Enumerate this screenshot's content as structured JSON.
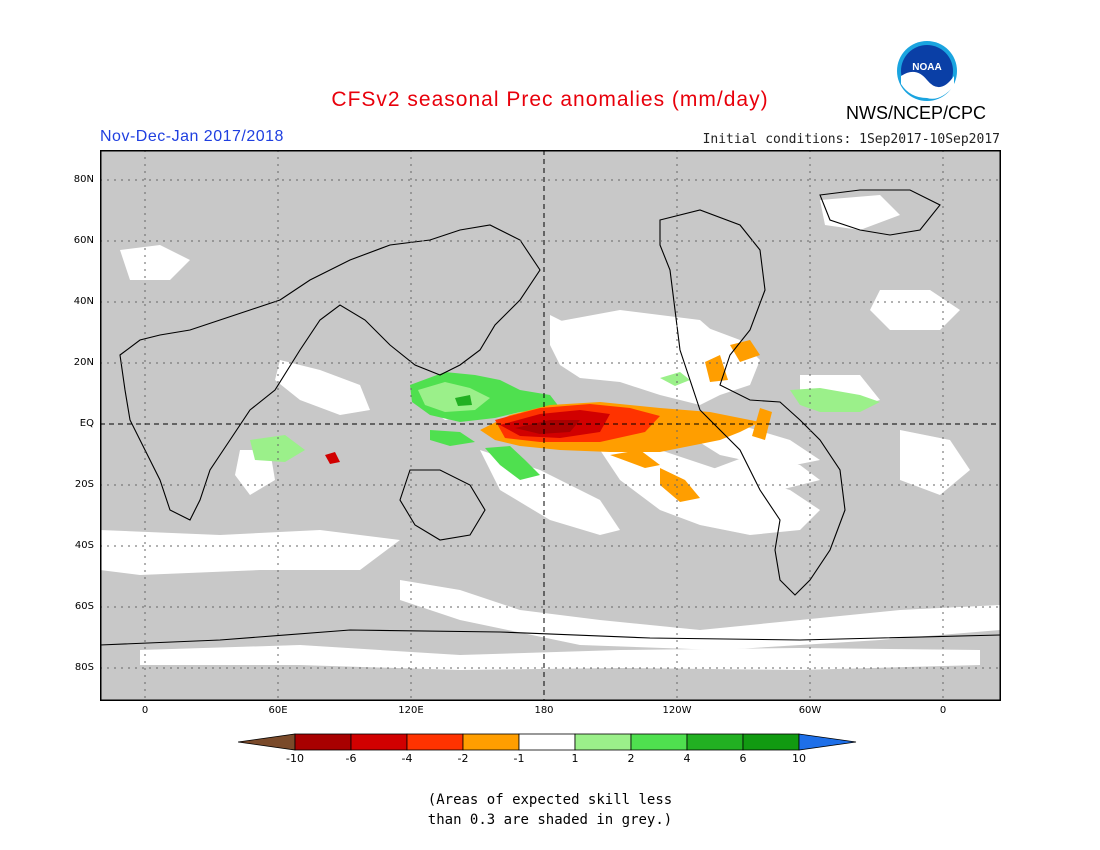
{
  "title": "CFSv2 seasonal Prec anomalies (mm/day)",
  "period": "Nov-Dec-Jan 2017/2018",
  "agency": "NWS/NCEP/CPC",
  "logo_text": "NOAA",
  "initial_conditions": "Initial conditions: 1Sep2017-10Sep2017",
  "colors": {
    "title": "#e8000b",
    "period": "#1f3fe0",
    "skill_mask": "#c8c8c8",
    "grid": "#666666",
    "coast": "#000000"
  },
  "lat_labels": [
    "80N",
    "60N",
    "40N",
    "20N",
    "EQ",
    "20S",
    "40S",
    "60S",
    "80S"
  ],
  "lon_labels": [
    "0",
    "60E",
    "120E",
    "180",
    "120W",
    "60W",
    "0"
  ],
  "colorbar": {
    "labels": [
      "-10",
      "-6",
      "-4",
      "-2",
      "-1",
      "1",
      "2",
      "4",
      "6",
      "10"
    ],
    "colors": [
      "#7a4a2a",
      "#a80000",
      "#d10000",
      "#ff3300",
      "#ff9e00",
      "#ffffff",
      "#9bf08a",
      "#4fe04f",
      "#22b022",
      "#119a11",
      "#1e6fe8"
    ]
  },
  "note_line1": "(Areas of expected skill less",
  "note_line2": "than 0.3 are shaded in grey.)"
}
